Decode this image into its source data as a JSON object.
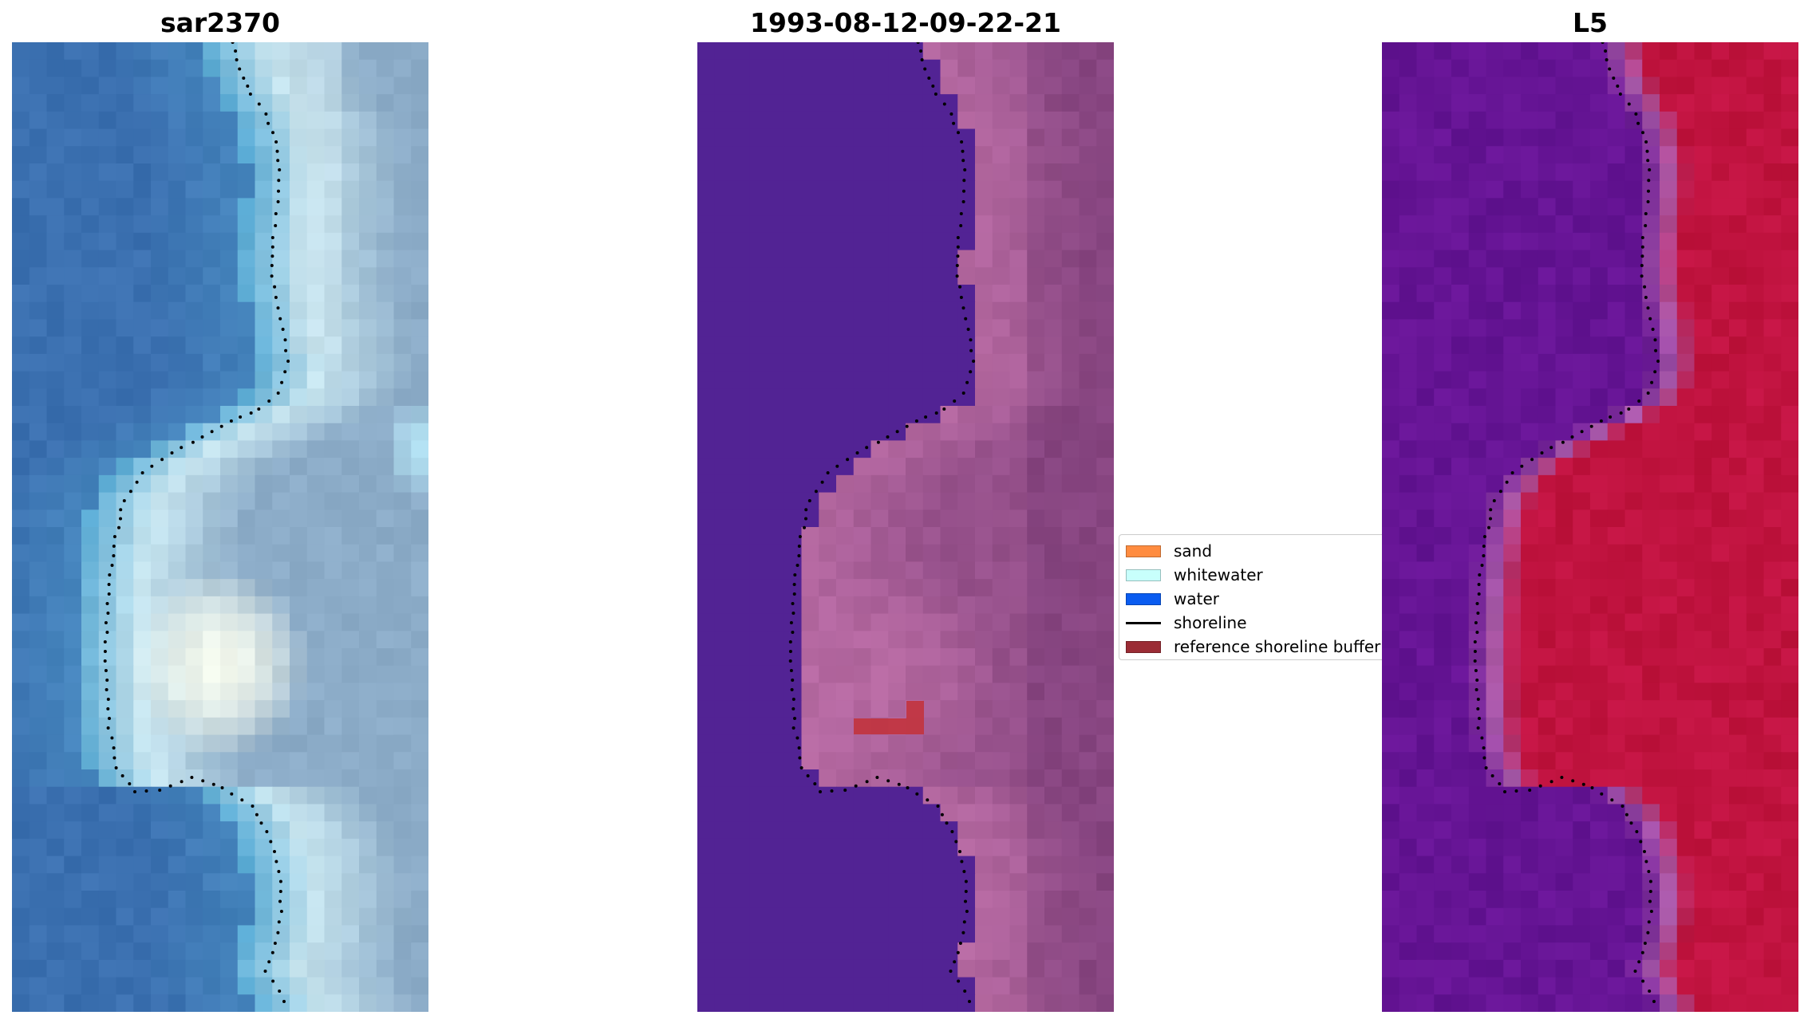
{
  "panels": [
    {
      "title": "sar2370",
      "kind": "satellite-rgb-image"
    },
    {
      "title": "1993-08-12-09-22-21",
      "kind": "classified-image"
    },
    {
      "title": "L5",
      "kind": "index-image"
    }
  ],
  "legend": {
    "items": [
      {
        "label": "sand",
        "color": "#ff8c40",
        "type": "patch"
      },
      {
        "label": "whitewater",
        "color": "#c8fffc",
        "type": "patch"
      },
      {
        "label": "water",
        "color": "#0a5cf0",
        "type": "patch"
      },
      {
        "label": "shoreline",
        "color": "#000000",
        "type": "line"
      },
      {
        "label": "reference shoreline buffer",
        "color": "#9b2c35",
        "type": "patch"
      }
    ]
  },
  "colors": {
    "classified_water": "#522394",
    "classified_land_light": "#b76aa2",
    "classified_land_dark": "#7b3c78",
    "buffer_fill": "#c1343f",
    "l5_water": "#651494",
    "l5_land": "#c0133f",
    "sar_water": "#3b70b0",
    "sar_land_highlight": "#f7fbee"
  }
}
